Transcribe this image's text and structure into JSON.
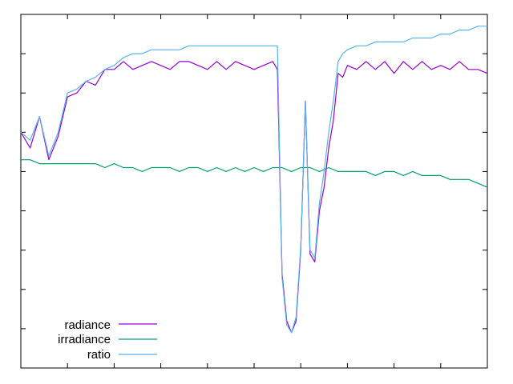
{
  "chart_data": {
    "type": "line",
    "title": "",
    "xlabel": "",
    "ylabel": "",
    "xlim": [
      0,
      100
    ],
    "ylim": [
      0,
      9
    ],
    "grid": false,
    "legend_position": "bottom-left",
    "x_ticks": [
      0,
      10,
      20,
      30,
      40,
      50,
      60,
      70,
      80,
      90,
      100
    ],
    "y_ticks": [
      1,
      2,
      3,
      4,
      5,
      6,
      7,
      8,
      9
    ],
    "series": [
      {
        "name": "radiance",
        "color": "#9400d3",
        "x": [
          0,
          2,
          4,
          6,
          8,
          10,
          12,
          14,
          16,
          18,
          20,
          22,
          24,
          26,
          28,
          30,
          32,
          34,
          36,
          38,
          40,
          42,
          44,
          46,
          48,
          50,
          52,
          54,
          55,
          56,
          57,
          58,
          59,
          60,
          61,
          62,
          63,
          64,
          65,
          66,
          67,
          68,
          69,
          70,
          72,
          74,
          76,
          78,
          80,
          82,
          84,
          86,
          88,
          90,
          92,
          94,
          96,
          98,
          100
        ],
        "y": [
          6.0,
          5.6,
          6.4,
          5.3,
          5.9,
          6.9,
          7.0,
          7.3,
          7.2,
          7.6,
          7.6,
          7.8,
          7.6,
          7.7,
          7.8,
          7.7,
          7.6,
          7.8,
          7.8,
          7.7,
          7.6,
          7.8,
          7.6,
          7.8,
          7.7,
          7.6,
          7.7,
          7.8,
          7.6,
          2.4,
          1.2,
          0.9,
          1.2,
          3.0,
          6.8,
          2.9,
          2.7,
          4.0,
          4.6,
          5.6,
          6.3,
          7.5,
          7.4,
          7.7,
          7.6,
          7.8,
          7.6,
          7.8,
          7.5,
          7.8,
          7.6,
          7.8,
          7.6,
          7.7,
          7.6,
          7.8,
          7.6,
          7.6,
          7.5
        ]
      },
      {
        "name": "irradiance",
        "color": "#009e73",
        "x": [
          0,
          2,
          4,
          6,
          8,
          10,
          12,
          14,
          16,
          18,
          20,
          22,
          24,
          26,
          28,
          30,
          32,
          34,
          36,
          38,
          40,
          42,
          44,
          46,
          48,
          50,
          52,
          54,
          56,
          58,
          60,
          62,
          64,
          66,
          68,
          70,
          72,
          74,
          76,
          78,
          80,
          82,
          84,
          86,
          88,
          90,
          92,
          94,
          96,
          98,
          100
        ],
        "y": [
          5.3,
          5.3,
          5.2,
          5.2,
          5.2,
          5.2,
          5.2,
          5.2,
          5.2,
          5.1,
          5.2,
          5.1,
          5.1,
          5.0,
          5.1,
          5.1,
          5.1,
          5.0,
          5.1,
          5.1,
          5.0,
          5.1,
          5.0,
          5.1,
          5.0,
          5.1,
          5.0,
          5.1,
          5.1,
          5.0,
          5.1,
          5.1,
          5.0,
          5.1,
          5.0,
          5.0,
          5.0,
          5.0,
          4.9,
          5.0,
          5.0,
          4.9,
          5.0,
          4.9,
          4.9,
          4.9,
          4.8,
          4.8,
          4.8,
          4.7,
          4.6
        ]
      },
      {
        "name": "ratio",
        "color": "#56b4e9",
        "x": [
          0,
          2,
          4,
          6,
          8,
          10,
          12,
          14,
          16,
          18,
          20,
          22,
          24,
          26,
          28,
          30,
          32,
          34,
          36,
          38,
          40,
          42,
          44,
          46,
          48,
          50,
          52,
          54,
          55,
          56,
          57,
          58,
          59,
          60,
          61,
          62,
          63,
          64,
          65,
          66,
          67,
          68,
          69,
          70,
          72,
          74,
          76,
          78,
          80,
          82,
          84,
          86,
          88,
          90,
          92,
          94,
          96,
          98,
          100
        ],
        "y": [
          6.0,
          5.8,
          6.4,
          5.4,
          6.0,
          7.0,
          7.1,
          7.3,
          7.4,
          7.6,
          7.7,
          7.9,
          8.0,
          8.0,
          8.1,
          8.1,
          8.1,
          8.1,
          8.2,
          8.2,
          8.2,
          8.2,
          8.2,
          8.2,
          8.2,
          8.2,
          8.2,
          8.2,
          8.2,
          2.3,
          1.1,
          0.9,
          1.3,
          3.1,
          6.8,
          3.0,
          2.8,
          4.2,
          5.0,
          6.0,
          6.8,
          7.8,
          8.0,
          8.1,
          8.2,
          8.2,
          8.3,
          8.3,
          8.3,
          8.3,
          8.4,
          8.4,
          8.4,
          8.5,
          8.5,
          8.6,
          8.6,
          8.7,
          8.7
        ]
      }
    ]
  }
}
